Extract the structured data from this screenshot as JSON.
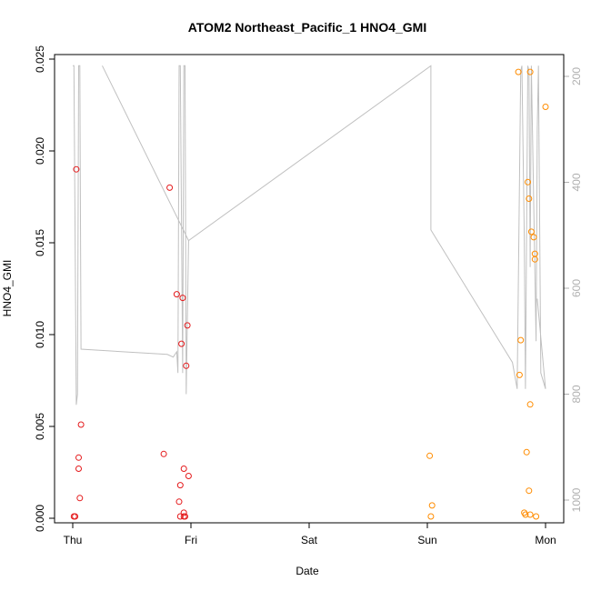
{
  "chart_data": {
    "type": "scatter",
    "title": "ATOM2 Northeast_Pacific_1 HNO4_GMI",
    "xlabel": "Date",
    "ylabel": "HNO4_GMI",
    "x_ticks": [
      "Thu",
      "Fri",
      "Sat",
      "Sun",
      "Mon"
    ],
    "x_range_days": [
      0,
      4
    ],
    "ylim": [
      0,
      0.0254
    ],
    "y_ticks": [
      "0.000",
      "0.005",
      "0.010",
      "0.015",
      "0.020",
      "0.025"
    ],
    "y2_label": "",
    "y2_ticks": [
      "200",
      "400",
      "600",
      "800",
      "1000"
    ],
    "y2_range_pressure": [
      180,
      1020
    ],
    "colors": {
      "series_red": "#e41a1c",
      "series_orange": "#ff8c00",
      "pressure_line": "#c0c0c0",
      "axis": "#000000",
      "axis2": "#b0b0b0"
    },
    "series": [
      {
        "color_key": "series_red",
        "points": [
          [
            0.01,
            0.0001
          ],
          [
            0.02,
            0.0001
          ],
          [
            0.03,
            0.019
          ],
          [
            0.05,
            0.0033
          ],
          [
            0.05,
            0.0027
          ],
          [
            0.06,
            0.0011
          ],
          [
            0.07,
            0.0051
          ],
          [
            0.77,
            0.0035
          ],
          [
            0.82,
            0.018
          ],
          [
            0.88,
            0.0122
          ],
          [
            0.9,
            0.0009
          ],
          [
            0.91,
            0.0001
          ],
          [
            0.91,
            0.0018
          ],
          [
            0.92,
            0.0095
          ],
          [
            0.93,
            0.012
          ],
          [
            0.94,
            0.0001
          ],
          [
            0.94,
            0.0027
          ],
          [
            0.94,
            0.0003
          ],
          [
            0.95,
            0.0001
          ],
          [
            0.96,
            0.0083
          ],
          [
            0.97,
            0.0105
          ],
          [
            0.98,
            0.0023
          ]
        ]
      },
      {
        "color_key": "series_orange",
        "points": [
          [
            3.02,
            0.0034
          ],
          [
            3.03,
            0.0001
          ],
          [
            3.04,
            0.0007
          ],
          [
            3.77,
            0.0243
          ],
          [
            3.78,
            0.0078
          ],
          [
            3.79,
            0.0097
          ],
          [
            3.82,
            0.0003
          ],
          [
            3.83,
            0.0002
          ],
          [
            3.84,
            0.0036
          ],
          [
            3.85,
            0.0183
          ],
          [
            3.86,
            0.0174
          ],
          [
            3.86,
            0.0015
          ],
          [
            3.87,
            0.0243
          ],
          [
            3.87,
            0.0002
          ],
          [
            3.87,
            0.0062
          ],
          [
            3.88,
            0.0156
          ],
          [
            3.9,
            0.0153
          ],
          [
            3.91,
            0.0141
          ],
          [
            3.91,
            0.0144
          ],
          [
            3.92,
            0.0001
          ],
          [
            4.0,
            0.0224
          ]
        ]
      }
    ],
    "pressure_line": [
      [
        0.0,
        180
      ],
      [
        0.01,
        180
      ],
      [
        0.03,
        820
      ],
      [
        0.04,
        800
      ],
      [
        0.05,
        180
      ],
      [
        0.06,
        180
      ],
      [
        0.07,
        715
      ],
      [
        0.8,
        725
      ],
      [
        0.85,
        730
      ],
      [
        0.88,
        720
      ],
      [
        0.89,
        760
      ],
      [
        0.9,
        180
      ],
      [
        0.91,
        180
      ],
      [
        0.93,
        760
      ],
      [
        0.94,
        180
      ],
      [
        0.95,
        180
      ],
      [
        0.96,
        800
      ],
      [
        0.98,
        510
      ],
      [
        0.25,
        180
      ],
      [
        0.98,
        510
      ],
      [
        3.03,
        180
      ],
      [
        3.03,
        490
      ],
      [
        3.72,
        740
      ],
      [
        3.76,
        790
      ],
      [
        3.79,
        190
      ],
      [
        3.8,
        180
      ],
      [
        3.82,
        500
      ],
      [
        3.83,
        790
      ],
      [
        3.85,
        180
      ],
      [
        3.86,
        190
      ],
      [
        3.87,
        560
      ],
      [
        3.88,
        180
      ],
      [
        3.92,
        700
      ],
      [
        3.93,
        300
      ],
      [
        3.94,
        180
      ],
      [
        3.96,
        760
      ],
      [
        4.0,
        790
      ],
      [
        3.93,
        620
      ]
    ]
  }
}
